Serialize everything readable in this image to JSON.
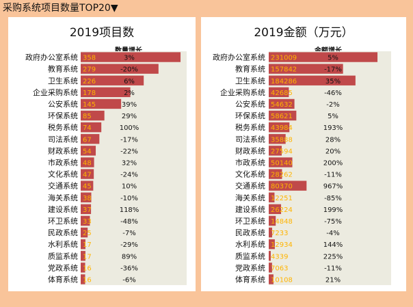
{
  "header": {
    "title": "采购系统项目数量TOP20",
    "dropdown_icon": "triangle-down-icon"
  },
  "chart_data": [
    {
      "type": "bar",
      "orientation": "horizontal",
      "title": "2019项目数",
      "growth_header": "数量增长",
      "categories": [
        "政府办公室系统",
        "教育系统",
        "卫生系统",
        "企业采购系统",
        "公安系统",
        "环保系统",
        "税务系统",
        "司法系统",
        "财政系统",
        "市政系统",
        "文化系统",
        "交通系统",
        "海关系统",
        "建设系统",
        "环卫系统",
        "民政系统",
        "水利系统",
        "质监系统",
        "党政系统",
        "体育系统"
      ],
      "values": [
        358,
        279,
        226,
        178,
        145,
        85,
        74,
        67,
        54,
        48,
        47,
        45,
        38,
        37,
        33,
        25,
        17,
        17,
        16,
        16
      ],
      "value_labels": [
        "358",
        "279",
        "226",
        "178",
        "145",
        "85",
        "74",
        "67",
        "54",
        "48",
        "47",
        "45",
        "38",
        "37",
        "33",
        "25",
        "17",
        "17",
        "16",
        "16"
      ],
      "growth": [
        "3%",
        "-20%",
        "6%",
        "2%",
        "39%",
        "29%",
        "100%",
        "-17%",
        "-22%",
        "32%",
        "-24%",
        "10%",
        "-10%",
        "118%",
        "-48%",
        "-7%",
        "-29%",
        "89%",
        "-36%",
        "-6%"
      ],
      "xlim": [
        0,
        380
      ],
      "bar_color": "#c0494a",
      "label_color": "#ffb400"
    },
    {
      "type": "bar",
      "orientation": "horizontal",
      "title": "2019金额（万元）",
      "growth_header": "金额增长",
      "categories": [
        "政府办公室系统",
        "教育系统",
        "卫生系统",
        "企业采购系统",
        "公安系统",
        "环保系统",
        "税务系统",
        "司法系统",
        "财政系统",
        "市政系统",
        "文化系统",
        "交通系统",
        "海关系统",
        "建设系统",
        "环卫系统",
        "民政系统",
        "水利系统",
        "质监系统",
        "党政系统",
        "体育系统"
      ],
      "values": [
        231009,
        157842,
        184286,
        42685,
        54632,
        58621,
        43984,
        35888,
        27594,
        50140,
        28262,
        80370,
        12251,
        26224,
        14848,
        7233,
        12934,
        4339,
        7063,
        10108
      ],
      "value_labels": [
        "231009",
        "157842",
        "184286",
        "42685",
        "54632",
        "58621",
        "43984",
        "35888",
        "27594",
        "50140",
        "28262",
        "80370",
        "12251",
        "26224",
        "14848",
        "7233",
        "12934",
        "4339",
        "7063",
        "10108"
      ],
      "growth": [
        "5%",
        "-17%",
        "35%",
        "-46%",
        "-2%",
        "5%",
        "193%",
        "28%",
        "20%",
        "200%",
        "-11%",
        "967%",
        "-85%",
        "199%",
        "-75%",
        "-4%",
        "144%",
        "225%",
        "-11%",
        "21%"
      ],
      "xlim": [
        0,
        260000
      ],
      "bar_color": "#c0494a",
      "label_color": "#ffb400"
    }
  ]
}
